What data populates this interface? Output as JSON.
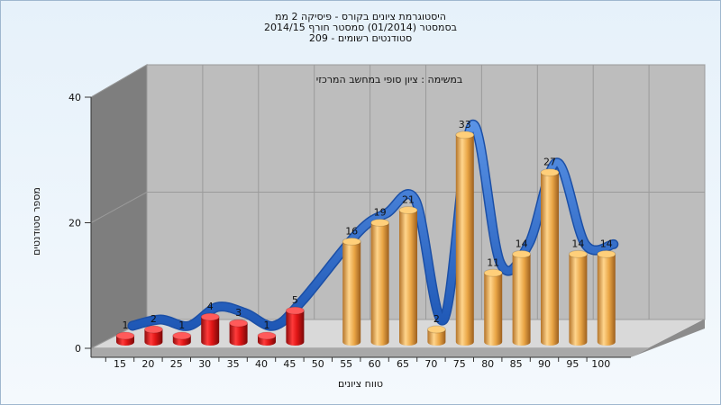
{
  "header": {
    "line1": "היסטוגרמת ציונים בקורס - פיסיקה 2 ממ",
    "line2": "בסמסטר (01/2014) סמסטר חורף 2014/15",
    "line3": "סטודנטים רשומים - 209"
  },
  "chart_data": {
    "type": "bar",
    "title": "במשימה : ציון סופי במחשב המרכזי",
    "xlabel": "טווח ציונים",
    "ylabel": "מספר סטודנטים",
    "ylim": [
      0,
      40
    ],
    "yticks": [
      0,
      20,
      40
    ],
    "categories": [
      "15",
      "20",
      "25",
      "30",
      "35",
      "40",
      "45",
      "50",
      "55",
      "60",
      "65",
      "70",
      "75",
      "80",
      "85",
      "90",
      "95",
      "100"
    ],
    "bars": [
      {
        "x": "15",
        "value": 1,
        "color": "red"
      },
      {
        "x": "20",
        "value": 2,
        "color": "red"
      },
      {
        "x": "25",
        "value": 1,
        "color": "red"
      },
      {
        "x": "30",
        "value": 4,
        "color": "red"
      },
      {
        "x": "35",
        "value": 3,
        "color": "red"
      },
      {
        "x": "40",
        "value": 1,
        "color": "red"
      },
      {
        "x": "45",
        "value": 5,
        "color": "red"
      },
      {
        "x": "55",
        "value": 16,
        "color": "gold"
      },
      {
        "x": "60",
        "value": 19,
        "color": "gold"
      },
      {
        "x": "65",
        "value": 21,
        "color": "gold"
      },
      {
        "x": "70",
        "value": 2,
        "color": "gold"
      },
      {
        "x": "75",
        "value": 33,
        "color": "gold"
      },
      {
        "x": "80",
        "value": 11,
        "color": "gold"
      },
      {
        "x": "85",
        "value": 14,
        "color": "gold"
      },
      {
        "x": "90",
        "value": 27,
        "color": "gold"
      },
      {
        "x": "95",
        "value": 14,
        "color": "gold"
      },
      {
        "x": "100",
        "value": 14,
        "color": "gold"
      }
    ],
    "trend_line": {
      "type": "smooth-ribbon",
      "color": "#2f6fcf"
    },
    "colors": {
      "fail": "#d81818",
      "pass": "#e7a13a",
      "trend": "#2f6fcf",
      "plot_back": "#bdbdbd",
      "side_wall": "#7e7e7e"
    },
    "grid": true
  }
}
